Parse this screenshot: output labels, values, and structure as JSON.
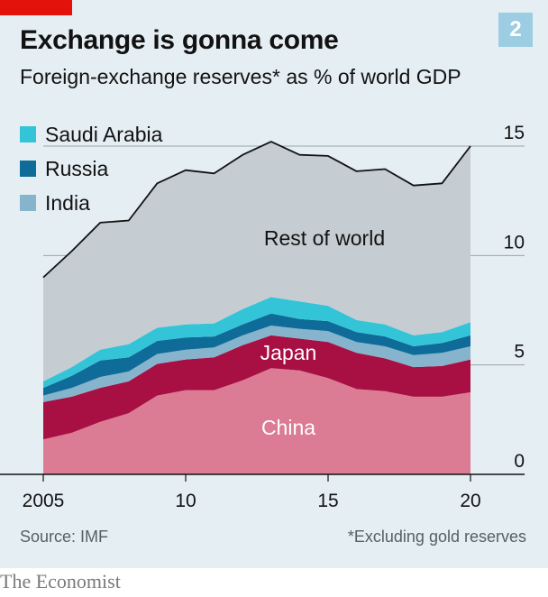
{
  "header": {
    "title": "Exchange is gonna come",
    "subtitle": "Foreign-exchange reserves* as % of world GDP",
    "chart_number": "2"
  },
  "footer": {
    "source": "Source: IMF",
    "note": "*Excluding gold reserves",
    "brand": "The Economist"
  },
  "colors": {
    "china": "#db7b94",
    "japan": "#a80f42",
    "india": "#85b4cc",
    "russia": "#0f6b98",
    "saudi_arabia": "#34c4d8",
    "rest_of_world": "#c5cdd2",
    "total_line": "#121212",
    "panel": "#e5eef3",
    "accent_red": "#e3120b"
  },
  "chart_data": {
    "type": "area",
    "stacked": true,
    "x": [
      2005,
      2006,
      2007,
      2008,
      2009,
      2010,
      2011,
      2012,
      2013,
      2014,
      2015,
      2016,
      2017,
      2018,
      2019,
      2020
    ],
    "xlim": [
      2005,
      2020
    ],
    "ylim": [
      0,
      15
    ],
    "x_ticks": [
      2005,
      2010,
      2015,
      2020
    ],
    "x_tick_labels": [
      "2005",
      "10",
      "15",
      "20"
    ],
    "y_ticks": [
      0,
      5,
      10,
      15
    ],
    "y_tick_labels": [
      "0",
      "5",
      "10",
      "15"
    ],
    "grid": true,
    "legend_position": "top-left",
    "legend": [
      "Saudi Arabia",
      "Russia",
      "India"
    ],
    "series": [
      {
        "name": "China",
        "key": "china",
        "values": [
          1.6,
          1.9,
          2.4,
          2.8,
          3.6,
          3.85,
          3.85,
          4.3,
          4.85,
          4.75,
          4.4,
          3.9,
          3.8,
          3.55,
          3.55,
          3.75
        ]
      },
      {
        "name": "Japan",
        "key": "japan",
        "values": [
          1.7,
          1.65,
          1.55,
          1.45,
          1.45,
          1.4,
          1.5,
          1.6,
          1.5,
          1.45,
          1.65,
          1.65,
          1.5,
          1.35,
          1.4,
          1.5
        ]
      },
      {
        "name": "India",
        "key": "india",
        "values": [
          0.3,
          0.4,
          0.5,
          0.45,
          0.45,
          0.45,
          0.45,
          0.45,
          0.45,
          0.45,
          0.5,
          0.5,
          0.55,
          0.55,
          0.6,
          0.6
        ]
      },
      {
        "name": "Russia",
        "key": "russia",
        "values": [
          0.35,
          0.55,
          0.75,
          0.65,
          0.6,
          0.55,
          0.5,
          0.5,
          0.55,
          0.45,
          0.45,
          0.45,
          0.45,
          0.4,
          0.45,
          0.5
        ]
      },
      {
        "name": "Saudi Arabia",
        "key": "saudi_arabia",
        "values": [
          0.3,
          0.4,
          0.5,
          0.6,
          0.6,
          0.6,
          0.6,
          0.7,
          0.75,
          0.8,
          0.7,
          0.55,
          0.55,
          0.5,
          0.5,
          0.6
        ]
      },
      {
        "name": "Rest of world",
        "key": "rest_of_world",
        "values": [
          4.75,
          5.3,
          5.8,
          5.65,
          6.6,
          7.05,
          6.85,
          7.05,
          7.1,
          6.7,
          6.85,
          6.8,
          7.1,
          6.85,
          6.8,
          8.05
        ]
      }
    ],
    "total": [
      9.0,
      10.2,
      11.5,
      11.6,
      13.3,
      13.9,
      13.75,
      14.6,
      15.2,
      14.6,
      14.55,
      13.85,
      13.95,
      13.2,
      13.3,
      15.0
    ],
    "area_labels": {
      "china": "China",
      "japan": "Japan",
      "rest_of_world": "Rest of world"
    }
  }
}
